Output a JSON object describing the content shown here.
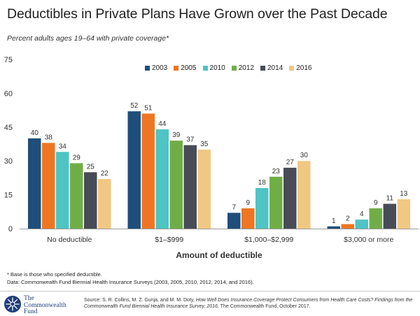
{
  "chart_data": {
    "type": "bar",
    "title": "Deductibles in Private Plans Have Grown over the Past Decade",
    "subtitle": "Percent adults ages 19–64 with private coverage*",
    "xlabel": "Amount of deductible",
    "ylabel": "",
    "ylim": [
      0,
      75
    ],
    "yticks": [
      0,
      15,
      30,
      45,
      60,
      75
    ],
    "grid": false,
    "legend_position": "top",
    "categories": [
      "No deductible",
      "$1–$999",
      "$1,000–$2,999",
      "$3,000 or more"
    ],
    "series": [
      {
        "name": "2003",
        "color": "#1f4e7a",
        "values": [
          40,
          52,
          7,
          1
        ]
      },
      {
        "name": "2005",
        "color": "#ee7623",
        "values": [
          38,
          51,
          9,
          2
        ]
      },
      {
        "name": "2010",
        "color": "#4ec4c4",
        "values": [
          34,
          44,
          18,
          4
        ]
      },
      {
        "name": "2012",
        "color": "#71ad47",
        "values": [
          29,
          39,
          23,
          9
        ]
      },
      {
        "name": "2014",
        "color": "#474c56",
        "values": [
          25,
          37,
          27,
          11
        ]
      },
      {
        "name": "2016",
        "color": "#f0c883",
        "values": [
          22,
          35,
          30,
          13
        ]
      }
    ]
  },
  "footnotes": {
    "base_note": "* Base is those who specified deductible.",
    "data_note": "Data: Commonwealth Fund Biennial Health Insurance Surveys (2003, 2005, 2010, 2012, 2014, and 2016)."
  },
  "source": {
    "prefix": "Source: S. R. Collins, M. Z. Gunja, and M. M. Doty, ",
    "italic": "How Well Does Insurance Coverage Protect Consumers from Health Care Costs? Findings from the Commonwealth Fund Biennial Health Insurance Survey, 2016",
    "suffix": ", The Commonwealth Fund, October 2017."
  },
  "logo": {
    "line1": "The",
    "line2": "Commonwealth",
    "line3": "Fund",
    "color": "#1f3f7a"
  }
}
